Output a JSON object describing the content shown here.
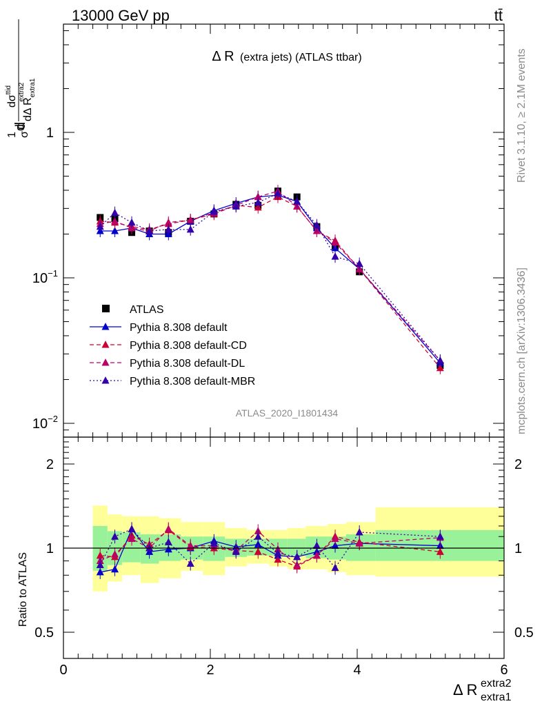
{
  "header": {
    "left": "13000 GeV pp",
    "right": "tt̄"
  },
  "side_labels": {
    "rivet": "Rivet 3.1.10, ≥ 2.1M events",
    "mcplots": "mcplots.cern.ch [arXiv:1306.3436]"
  },
  "analysis_id": "ATLAS_2020_I1801434",
  "chart_data": [
    {
      "type": "scatter",
      "title": "Δ R (extra jets) (ATLAS ttbar)",
      "title_main": "Δ R",
      "title_rest": "(extra jets) (ATLAS ttbar)",
      "ylabel": "1/σ dσ^{ttid}/dΔ R_{extra1}^{extra2}",
      "ylabel_parts": {
        "num": "d",
        "num_sup": "1",
        "frac_num": "dσ",
        "frac_num_sup": "ttid",
        "frac_den": "dΔ R",
        "frac_den_sub": "extra1",
        "frac_den_sup": "extra2",
        "prefix_num": "1",
        "prefix_den": "σ"
      },
      "xlabel_main": "Δ R",
      "xlabel_sup": "extra2",
      "xlabel_sub": "extra1",
      "log_y": true,
      "xlim": [
        0,
        6
      ],
      "ylim": [
        0.008,
        6
      ],
      "y_ticks": [
        {
          "value": 1,
          "label": "1"
        },
        {
          "value": 0.1,
          "label": "10",
          "exp": "−1"
        },
        {
          "value": 0.01,
          "label": "10",
          "exp": "−2"
        }
      ],
      "legend_position": "middle-left",
      "x": [
        0.5,
        0.7,
        0.93,
        1.17,
        1.43,
        1.73,
        2.05,
        2.35,
        2.65,
        2.92,
        3.18,
        3.45,
        3.7,
        4.03,
        5.13
      ],
      "series": [
        {
          "name": "ATLAS",
          "color": "#000000",
          "marker": "square",
          "line": "none",
          "values": [
            0.26,
            0.255,
            0.205,
            0.21,
            0.205,
            0.245,
            0.275,
            0.32,
            0.315,
            0.395,
            0.36,
            0.225,
            0.165,
            0.11,
            0.025
          ]
        },
        {
          "name": "Pythia 8.308 default",
          "color": "#0000cc",
          "marker": "triangle",
          "line": "solid",
          "values": [
            0.21,
            0.21,
            0.22,
            0.2,
            0.2,
            0.245,
            0.29,
            0.325,
            0.36,
            0.37,
            0.335,
            0.22,
            0.16,
            0.115,
            0.026
          ]
        },
        {
          "name": "Pythia 8.308 default-CD",
          "color": "#cc0033",
          "marker": "triangle",
          "line": "dashed",
          "values": [
            0.245,
            0.24,
            0.225,
            0.215,
            0.235,
            0.25,
            0.275,
            0.315,
            0.305,
            0.36,
            0.31,
            0.21,
            0.18,
            0.115,
            0.024
          ]
        },
        {
          "name": "Pythia 8.308 default-DL",
          "color": "#bb0066",
          "marker": "triangle",
          "line": "dashed",
          "values": [
            0.235,
            0.245,
            0.22,
            0.21,
            0.24,
            0.25,
            0.28,
            0.315,
            0.36,
            0.395,
            0.31,
            0.21,
            0.175,
            0.115,
            0.027
          ]
        },
        {
          "name": "Pythia 8.308 default-MBR",
          "color": "#3300aa",
          "marker": "triangle",
          "line": "dotted",
          "values": [
            0.225,
            0.28,
            0.24,
            0.21,
            0.215,
            0.215,
            0.285,
            0.31,
            0.33,
            0.38,
            0.335,
            0.23,
            0.14,
            0.125,
            0.027
          ]
        }
      ]
    },
    {
      "type": "scatter",
      "ylabel": "Ratio to ATLAS",
      "log_y": true,
      "xlim": [
        0,
        6
      ],
      "ylim": [
        0.4,
        2.6
      ],
      "y_ticks": [
        {
          "value": 0.5,
          "label": "0.5"
        },
        {
          "value": 1,
          "label": "1"
        },
        {
          "value": 2,
          "label": "2"
        }
      ],
      "x_ticks": [
        {
          "value": 0,
          "label": "0"
        },
        {
          "value": 2,
          "label": "2"
        },
        {
          "value": 4,
          "label": "4"
        },
        {
          "value": 6,
          "label": "6"
        }
      ],
      "bands": [
        {
          "x0": 0.4,
          "x1": 0.6,
          "y_lo": 0.7,
          "y_hi": 1.42,
          "g_lo": 0.83,
          "g_hi": 1.2
        },
        {
          "x0": 0.6,
          "x1": 0.8,
          "y_lo": 0.76,
          "y_hi": 1.32,
          "g_lo": 0.87,
          "g_hi": 1.15
        },
        {
          "x0": 0.8,
          "x1": 1.05,
          "y_lo": 0.8,
          "y_hi": 1.3,
          "g_lo": 0.89,
          "g_hi": 1.14
        },
        {
          "x0": 1.05,
          "x1": 1.3,
          "y_lo": 0.75,
          "y_hi": 1.3,
          "g_lo": 0.88,
          "g_hi": 1.12
        },
        {
          "x0": 1.3,
          "x1": 1.6,
          "y_lo": 0.78,
          "y_hi": 1.28,
          "g_lo": 0.9,
          "g_hi": 1.12
        },
        {
          "x0": 1.6,
          "x1": 1.9,
          "y_lo": 0.83,
          "y_hi": 1.24,
          "g_lo": 0.91,
          "g_hi": 1.1
        },
        {
          "x0": 1.9,
          "x1": 2.2,
          "y_lo": 0.8,
          "y_hi": 1.24,
          "g_lo": 0.9,
          "g_hi": 1.1
        },
        {
          "x0": 2.2,
          "x1": 2.5,
          "y_lo": 0.86,
          "y_hi": 1.18,
          "g_lo": 0.93,
          "g_hi": 1.08
        },
        {
          "x0": 2.5,
          "x1": 2.8,
          "y_lo": 0.88,
          "y_hi": 1.16,
          "g_lo": 0.94,
          "g_hi": 1.08
        },
        {
          "x0": 2.8,
          "x1": 3.05,
          "y_lo": 0.86,
          "y_hi": 1.16,
          "g_lo": 0.94,
          "g_hi": 1.08
        },
        {
          "x0": 3.05,
          "x1": 3.3,
          "y_lo": 0.84,
          "y_hi": 1.18,
          "g_lo": 0.94,
          "g_hi": 1.08
        },
        {
          "x0": 3.3,
          "x1": 3.6,
          "y_lo": 0.84,
          "y_hi": 1.2,
          "g_lo": 0.92,
          "g_hi": 1.1
        },
        {
          "x0": 3.6,
          "x1": 3.85,
          "y_lo": 0.82,
          "y_hi": 1.22,
          "g_lo": 0.91,
          "g_hi": 1.1
        },
        {
          "x0": 3.85,
          "x1": 4.25,
          "y_lo": 0.8,
          "y_hi": 1.24,
          "g_lo": 0.9,
          "g_hi": 1.12
        },
        {
          "x0": 4.25,
          "x1": 6.0,
          "y_lo": 0.79,
          "y_hi": 1.4,
          "g_lo": 0.9,
          "g_hi": 1.16
        }
      ],
      "x": [
        0.5,
        0.7,
        0.93,
        1.17,
        1.43,
        1.73,
        2.05,
        2.35,
        2.65,
        2.92,
        3.18,
        3.45,
        3.7,
        4.03,
        5.13
      ],
      "series": [
        {
          "name": "Pythia 8.308 default",
          "color": "#0000cc",
          "line": "solid",
          "values": [
            0.82,
            0.84,
            1.17,
            0.97,
            0.99,
            1.0,
            1.06,
            1.01,
            1.03,
            0.94,
            0.93,
            0.97,
            1.02,
            1.04,
            1.02
          ]
        },
        {
          "name": "Pythia 8.308 default-CD",
          "color": "#cc0033",
          "line": "dashed",
          "values": [
            0.94,
            0.93,
            1.11,
            1.03,
            1.16,
            1.01,
            1.0,
            0.98,
            0.97,
            0.91,
            0.86,
            0.94,
            1.1,
            1.05,
            0.97
          ]
        },
        {
          "name": "Pythia 8.308 default-DL",
          "color": "#bb0066",
          "line": "dashed",
          "values": [
            0.9,
            0.95,
            1.08,
            1.0,
            1.17,
            1.02,
            1.02,
            0.98,
            1.15,
            0.99,
            0.87,
            0.94,
            1.08,
            1.04,
            1.09
          ]
        },
        {
          "name": "Pythia 8.308 default-MBR",
          "color": "#3300aa",
          "line": "dotted",
          "values": [
            0.87,
            1.1,
            1.17,
            1.0,
            1.05,
            0.88,
            1.04,
            0.97,
            1.1,
            0.96,
            0.93,
            1.02,
            0.85,
            1.14,
            1.1
          ]
        }
      ]
    }
  ]
}
